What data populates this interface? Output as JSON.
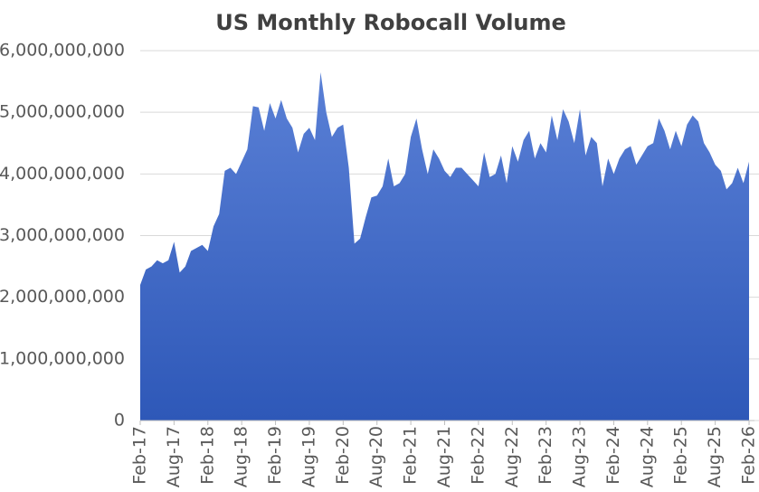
{
  "chart_data": {
    "type": "area",
    "title": "US Monthly Robocall Volume",
    "categories": [
      "Feb-17",
      null,
      null,
      null,
      null,
      null,
      "Aug-17",
      null,
      null,
      null,
      null,
      null,
      "Feb-18",
      null,
      null,
      null,
      null,
      null,
      "Aug-18",
      null,
      null,
      null,
      null,
      null,
      "Feb-19",
      null,
      null,
      null,
      null,
      null,
      "Aug-19",
      null,
      null,
      null,
      null,
      null,
      "Feb-20",
      null,
      null,
      null,
      null,
      null,
      "Aug-20",
      null,
      null,
      null,
      null,
      null,
      "Feb-21",
      null,
      null,
      null,
      null,
      null,
      "Aug-21",
      null,
      null,
      null,
      null,
      null,
      "Feb-22",
      null,
      null,
      null,
      null,
      null,
      "Aug-22",
      null,
      null,
      null,
      null,
      null,
      "Feb-23",
      null,
      null,
      null,
      null,
      null,
      "Aug-23",
      null,
      null,
      null,
      null,
      null,
      "Feb-24",
      null,
      null,
      null,
      null,
      null,
      "Aug-24",
      null,
      null,
      null,
      null,
      null,
      "Feb-25",
      null,
      null,
      null,
      null,
      null,
      "Aug-25",
      null,
      null,
      null,
      null,
      null,
      "Feb-26"
    ],
    "values": [
      2200000000,
      2450000000,
      2500000000,
      2600000000,
      2550000000,
      2600000000,
      2900000000,
      2400000000,
      2500000000,
      2750000000,
      2800000000,
      2850000000,
      2750000000,
      3150000000,
      3350000000,
      4050000000,
      4100000000,
      4000000000,
      4200000000,
      4400000000,
      5100000000,
      5080000000,
      4700000000,
      5150000000,
      4900000000,
      5200000000,
      4900000000,
      4750000000,
      4350000000,
      4650000000,
      4750000000,
      4550000000,
      5650000000,
      5000000000,
      4600000000,
      4750000000,
      4800000000,
      4100000000,
      2870000000,
      2950000000,
      3300000000,
      3620000000,
      3650000000,
      3800000000,
      4250000000,
      3800000000,
      3850000000,
      4000000000,
      4600000000,
      4900000000,
      4400000000,
      4000000000,
      4400000000,
      4250000000,
      4050000000,
      3950000000,
      4100000000,
      4100000000,
      4000000000,
      3900000000,
      3800000000,
      4350000000,
      3950000000,
      4000000000,
      4300000000,
      3850000000,
      4450000000,
      4200000000,
      4550000000,
      4700000000,
      4250000000,
      4500000000,
      4350000000,
      4950000000,
      4550000000,
      5050000000,
      4850000000,
      4500000000,
      5050000000,
      4300000000,
      4600000000,
      4500000000,
      3800000000,
      4250000000,
      4000000000,
      4250000000,
      4400000000,
      4450000000,
      4150000000,
      4300000000,
      4450000000,
      4500000000,
      4900000000,
      4700000000,
      4400000000,
      4700000000,
      4450000000,
      4800000000,
      4950000000,
      4850000000,
      4500000000,
      4350000000,
      4150000000,
      4050000000,
      3750000000,
      3850000000,
      4100000000,
      3850000000,
      4200000000
    ],
    "color": "#4472c4",
    "ylim": [
      0,
      6000000000
    ],
    "yticks": [
      0,
      {
        "value": 1000000000,
        "label": "1,000,000,000"
      },
      {
        "value": 2000000000,
        "label": "2,000,000,000"
      },
      {
        "value": 3000000000,
        "label": "3,000,000,000"
      },
      {
        "value": 4000000000,
        "label": "4,000,000,000"
      },
      {
        "value": 5000000000,
        "label": "5,000,000,000"
      },
      {
        "value": 6000000000,
        "label": "6,000,000,000"
      }
    ],
    "grid": true
  }
}
